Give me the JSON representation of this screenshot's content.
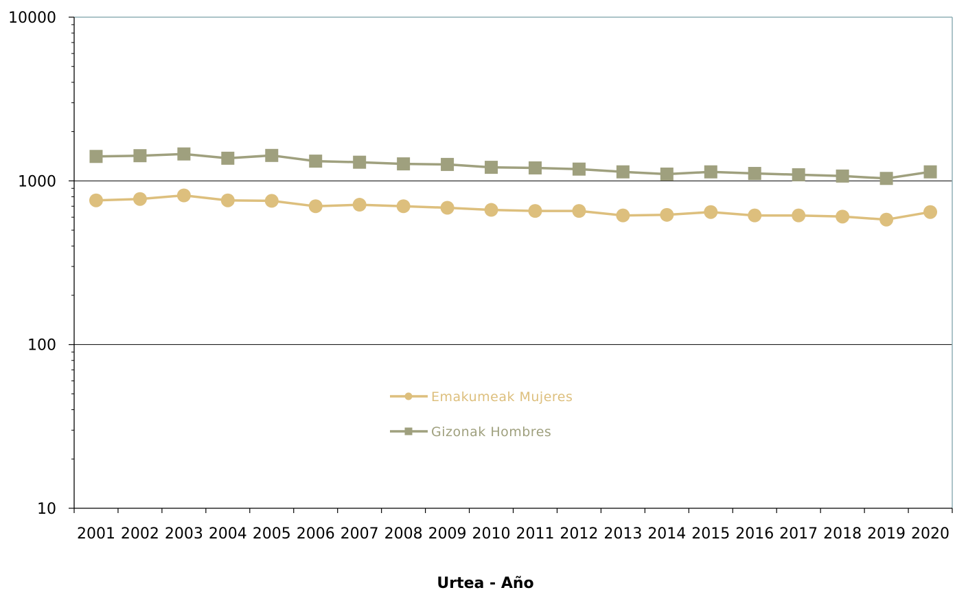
{
  "chart_data": {
    "type": "line",
    "y_scale": "log",
    "ylim": [
      10,
      10000
    ],
    "y_ticks": [
      "10",
      "100",
      "1000",
      "10000"
    ],
    "grid": "horizontal major gridlines at 100 and 1000",
    "legend_placement": "center",
    "xlabel": "Urtea - Año",
    "categories": [
      "2001",
      "2002",
      "2003",
      "2004",
      "2005",
      "2006",
      "2007",
      "2008",
      "2009",
      "2010",
      "2011",
      "2012",
      "2013",
      "2014",
      "2015",
      "2016",
      "2017",
      "2018",
      "2019",
      "2020"
    ],
    "series": [
      {
        "name": "Emakumeak  Mujeres",
        "marker": "circle",
        "color": "#DDBF7D",
        "values": [
          760,
          775,
          815,
          760,
          755,
          700,
          715,
          700,
          685,
          665,
          655,
          655,
          615,
          620,
          645,
          615,
          615,
          605,
          580,
          645
        ]
      },
      {
        "name": "Gizonak  Hombres",
        "marker": "square",
        "color": "#9FA07E",
        "values": [
          1410,
          1425,
          1460,
          1375,
          1430,
          1320,
          1300,
          1270,
          1260,
          1210,
          1200,
          1180,
          1135,
          1100,
          1135,
          1110,
          1090,
          1070,
          1035,
          1135
        ]
      }
    ],
    "frame_color": "#8FAFB5",
    "grid_color": "#000000"
  }
}
